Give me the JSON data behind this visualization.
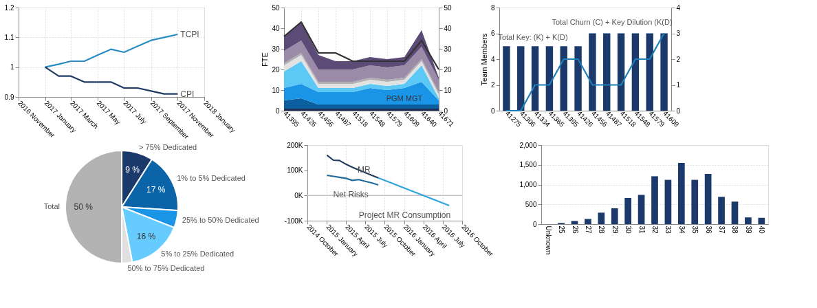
{
  "chart_data": [
    {
      "type": "line",
      "x": [
        "2017-01",
        "2017-02",
        "2017-03",
        "2017-04",
        "2017-05",
        "2017-06",
        "2017-07",
        "2017-08",
        "2017-09",
        "2017-10",
        "2017-11"
      ],
      "xlim": [
        "2016-11",
        "2018-01"
      ],
      "xticks": [
        {
          "value": "2016-11",
          "label": "2016 November"
        },
        {
          "value": "2017-01",
          "label": "2017 January"
        },
        {
          "value": "2017-03",
          "label": "2017 March"
        },
        {
          "value": "2017-05",
          "label": "2017 May"
        },
        {
          "value": "2017-07",
          "label": "2017 July"
        },
        {
          "value": "2017-09",
          "label": "2017 September"
        },
        {
          "value": "2017-11",
          "label": "2017 November"
        },
        {
          "value": "2018-01",
          "label": "2018 January"
        }
      ],
      "ylim": [
        0.9,
        1.2
      ],
      "yticks": [
        0.9,
        1,
        1.1,
        1.2
      ],
      "grid": true,
      "series": [
        {
          "name": "TCPI",
          "color": "#2b8cc4",
          "values": [
            1,
            1.01,
            1.02,
            1.02,
            1.04,
            1.06,
            1.05,
            1.07,
            1.09,
            1.1,
            1.11
          ]
        },
        {
          "name": "CPI",
          "color": "#1f3b63",
          "values": [
            1,
            0.97,
            0.97,
            0.95,
            0.95,
            0.95,
            0.93,
            0.93,
            0.92,
            0.91,
            0.91
          ]
        }
      ]
    },
    {
      "type": "area",
      "stacked": true,
      "categories": [
        "41395",
        "41426",
        "41456",
        "41487",
        "41518",
        "41548",
        "41579",
        "41609",
        "41640",
        "41671"
      ],
      "ylabel": "FTE",
      "ylim": [
        0,
        50
      ],
      "yticks": [
        0,
        10,
        20,
        30,
        40,
        50
      ],
      "y2lim": [
        0,
        50
      ],
      "y2ticks": [
        0,
        10,
        20,
        30,
        40,
        50
      ],
      "grid": "x",
      "series": [
        {
          "color": "#1a2f5a",
          "values": [
            1,
            1,
            1,
            1,
            1,
            1,
            1,
            1,
            1,
            1
          ]
        },
        {
          "color": "#0b5f9e",
          "values": [
            4,
            5,
            2,
            2,
            2,
            2,
            2,
            2,
            2,
            2
          ]
        },
        {
          "name": "PGM MGT",
          "color": "#1a94e6",
          "values": [
            6,
            7,
            6,
            6,
            6,
            8,
            7,
            8,
            11,
            2
          ]
        },
        {
          "color": "#5bc8f5",
          "values": [
            8,
            11,
            2,
            2,
            2,
            2,
            2,
            2,
            8,
            1
          ]
        },
        {
          "color": "#e2e2e2",
          "values": [
            3,
            3,
            2,
            2,
            2,
            2,
            2,
            2,
            2,
            2
          ]
        },
        {
          "color": "#b0b0b0",
          "values": [
            1,
            1,
            1,
            1,
            1,
            1,
            1,
            1,
            1,
            1
          ]
        },
        {
          "color": "#9b8aa8",
          "values": [
            6,
            6,
            6,
            6,
            6,
            6,
            6,
            6,
            6,
            6
          ]
        },
        {
          "color": "#5c4a77",
          "values": [
            7,
            9,
            7,
            4,
            4,
            4,
            4,
            4,
            8,
            1
          ]
        },
        {
          "type": "line",
          "axis": "y2",
          "color": "#333333",
          "values": [
            36,
            43,
            28,
            28,
            24,
            24,
            24,
            24,
            34,
            20
          ]
        }
      ]
    },
    {
      "type": "bar",
      "categories": [
        "41275",
        "41306",
        "41334",
        "41365",
        "41395",
        "41426",
        "41456",
        "41487",
        "41518",
        "41548",
        "41579",
        "41609"
      ],
      "ylabel": "Team Members",
      "ylim": [
        0,
        8
      ],
      "yticks": [
        0,
        2,
        4,
        6,
        8
      ],
      "y2lim": [
        0,
        4
      ],
      "y2ticks": [
        0,
        1,
        2,
        3,
        4
      ],
      "series": [
        {
          "name": "Total Key: (K) + K(D)",
          "color": "#1b3a6b",
          "values": [
            5,
            5,
            5,
            5,
            5,
            5,
            6,
            6,
            6,
            6,
            6,
            6
          ]
        },
        {
          "name": "Total Churn (C) + Key Dilution (K(D)",
          "type": "line",
          "axis": "y2",
          "color": "#1e7fb8",
          "values": [
            0,
            0,
            1,
            1,
            2,
            2,
            1,
            1,
            1,
            2,
            2,
            3
          ]
        }
      ]
    },
    {
      "type": "pie",
      "categories": [
        "> 75% Dedicated",
        "1% to 5% Dedicated",
        "25% to 50% Dedicated",
        "5% to 25% Dedicated",
        "50% to 75% Dedicated",
        "Total"
      ],
      "values": [
        9,
        17,
        5,
        16,
        3,
        50
      ],
      "value_labels": [
        "9 %",
        "17 %",
        null,
        "16 %",
        null,
        "50 %"
      ],
      "colors": [
        "#1b3a6b",
        "#0b64a8",
        "#1a94e6",
        "#66ccff",
        "#e0e0e0",
        "#b3b3b3"
      ]
    },
    {
      "type": "line",
      "xlim": [
        "2014-10",
        "2016-10"
      ],
      "xticks": [
        {
          "value": "2014-10",
          "label": "2014 October"
        },
        {
          "value": "2015-01",
          "label": "2015 January"
        },
        {
          "value": "2015-04",
          "label": "2015 April"
        },
        {
          "value": "2015-07",
          "label": "2015 July"
        },
        {
          "value": "2015-10",
          "label": "2015 October"
        },
        {
          "value": "2016-01",
          "label": "2016 January"
        },
        {
          "value": "2016-04",
          "label": "2016 April"
        },
        {
          "value": "2016-07",
          "label": "2016 July"
        },
        {
          "value": "2016-10",
          "label": "2016 October"
        }
      ],
      "ylim": [
        -100000,
        200000
      ],
      "yticks": [
        {
          "value": -100000,
          "label": "-100K"
        },
        {
          "value": 0,
          "label": "0K"
        },
        {
          "value": 100000,
          "label": "100K"
        },
        {
          "value": 200000,
          "label": "200K"
        }
      ],
      "grid": "x",
      "ref_lines": [
        {
          "axis": "y",
          "value": 0,
          "color": "#c8c8c8"
        }
      ],
      "series": [
        {
          "name": "MR",
          "color": "#243a5e",
          "x": [
            "2015-01",
            "2015-02",
            "2015-03",
            "2015-04",
            "2015-05",
            "2015-06",
            "2015-07",
            "2015-08",
            "2015-09"
          ],
          "values": [
            160000,
            140000,
            139000,
            124000,
            112000,
            101000,
            91000,
            80000,
            70000
          ]
        },
        {
          "name": "Net Risks",
          "color": "#1f6a9a",
          "x": [
            "2015-01",
            "2015-02",
            "2015-03",
            "2015-04",
            "2015-05",
            "2015-06",
            "2015-07",
            "2015-08",
            "2015-09"
          ],
          "values": [
            80000,
            76000,
            72000,
            68000,
            60000,
            63000,
            56000,
            50000,
            42000
          ]
        },
        {
          "name": "Project MR Consumption",
          "color": "#2ea3dc",
          "x": [
            "2015-09",
            "2016-08"
          ],
          "values": [
            70000,
            -40000
          ]
        }
      ]
    },
    {
      "type": "bar",
      "categories": [
        "Unknown",
        "25",
        "26",
        "27",
        "28",
        "29",
        "30",
        "31",
        "32",
        "33",
        "34",
        "35",
        "36",
        "37",
        "38",
        "39",
        "40"
      ],
      "ylim": [
        0,
        2000
      ],
      "yticks": [
        0,
        500,
        {
          "value": 1000,
          "label": "1,000"
        },
        {
          "value": 1500,
          "label": "1,500"
        },
        {
          "value": 2000,
          "label": "2,000"
        }
      ],
      "grid": "y",
      "series": [
        {
          "color": "#1b3a6b",
          "values": [
            null,
            30,
            80,
            130,
            290,
            400,
            660,
            740,
            1210,
            1120,
            1550,
            1120,
            1270,
            690,
            570,
            170,
            160
          ]
        }
      ]
    }
  ]
}
